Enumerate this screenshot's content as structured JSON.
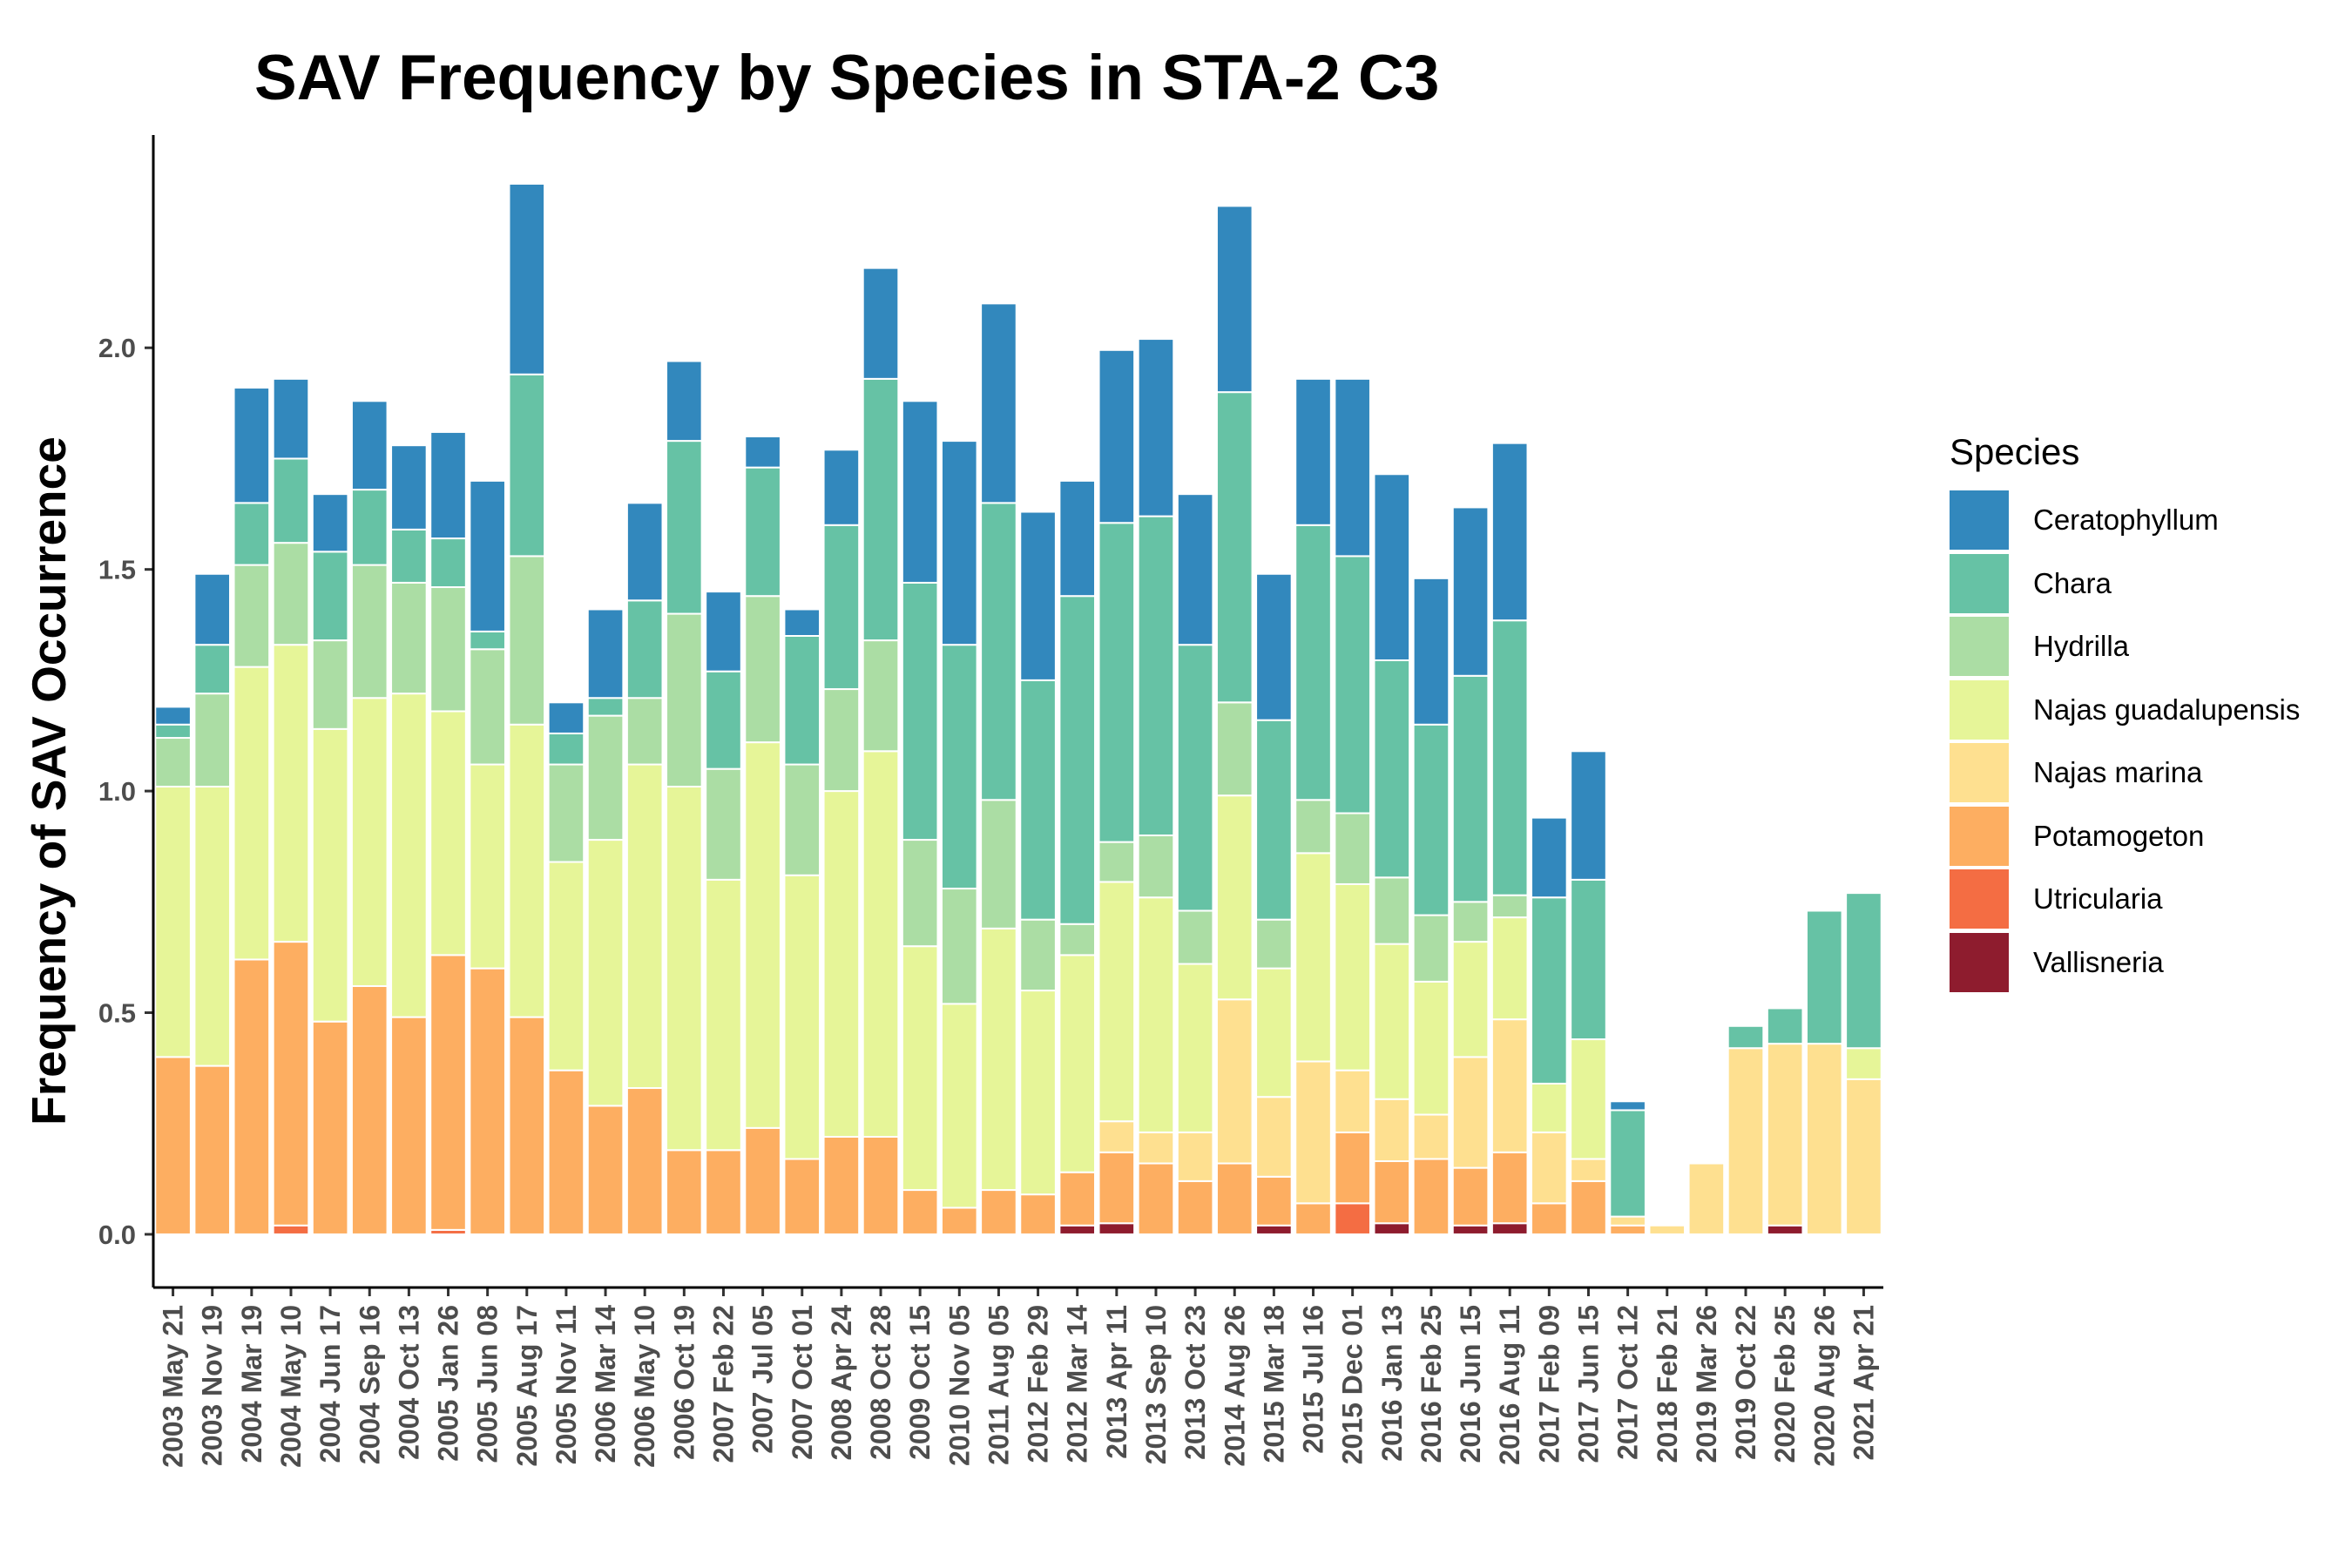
{
  "chart_data": {
    "type": "bar",
    "stacked": true,
    "title": "SAV Frequency by Species in STA-2 C3",
    "xlabel": "",
    "ylabel": "Frequency of SAV Occurrence",
    "ylim": [
      -0.12,
      2.48
    ],
    "yticks": [
      0.0,
      0.5,
      1.0,
      1.5,
      2.0
    ],
    "ytick_labels": [
      "0.0",
      "0.5",
      "1.0",
      "1.5",
      "2.0"
    ],
    "grid": false,
    "legend_title": "Species",
    "legend_position": "right",
    "categories": [
      "2003 May 21",
      "2003 Nov 19",
      "2004 Mar 19",
      "2004 May 10",
      "2004 Jun 17",
      "2004 Sep 16",
      "2004 Oct 13",
      "2005 Jan 26",
      "2005 Jun 08",
      "2005 Aug 17",
      "2005 Nov 11",
      "2006 Mar 14",
      "2006 May 10",
      "2006 Oct 19",
      "2007 Feb 22",
      "2007 Jul 05",
      "2007 Oct 01",
      "2008 Apr 24",
      "2008 Oct 28",
      "2009 Oct 15",
      "2010 Nov 05",
      "2011 Aug 05",
      "2012 Feb 29",
      "2012 Mar 14",
      "2013 Apr 11",
      "2013 Sep 10",
      "2013 Oct 23",
      "2014 Aug 26",
      "2015 Mar 18",
      "2015 Jul 16",
      "2015 Dec 01",
      "2016 Jan 13",
      "2016 Feb 25",
      "2016 Jun 15",
      "2016 Aug 11",
      "2017 Feb 09",
      "2017 Jun 15",
      "2017 Oct 12",
      "2018 Feb 21",
      "2019 Mar 26",
      "2019 Oct 22",
      "2020 Feb 25",
      "2020 Aug 26",
      "2021 Apr 21"
    ],
    "series": [
      {
        "name": "Vallisneria",
        "color": "#8E1C2E",
        "values": [
          0,
          0,
          0,
          0,
          0,
          0,
          0,
          0,
          0,
          0,
          0,
          0,
          0,
          0,
          0,
          0,
          0,
          0,
          0,
          0,
          0,
          0,
          0,
          0.02,
          0.025,
          0,
          0,
          0,
          0.02,
          0,
          0,
          0.025,
          0,
          0.02,
          0.025,
          0,
          0,
          0,
          0,
          0,
          0,
          0.02,
          0,
          0
        ]
      },
      {
        "name": "Utricularia",
        "color": "#F46D43",
        "values": [
          0,
          0,
          0,
          0.02,
          0,
          0,
          0,
          0.01,
          0,
          0,
          0,
          0,
          0,
          0,
          0,
          0,
          0,
          0,
          0,
          0,
          0,
          0,
          0,
          0,
          0,
          0,
          0,
          0,
          0,
          0,
          0.07,
          0,
          0,
          0,
          0,
          0,
          0,
          0,
          0,
          0,
          0,
          0,
          0,
          0
        ]
      },
      {
        "name": "Potamogeton",
        "color": "#FDAE61",
        "values": [
          0.4,
          0.38,
          0.62,
          0.64,
          0.48,
          0.56,
          0.49,
          0.62,
          0.6,
          0.49,
          0.37,
          0.29,
          0.33,
          0.19,
          0.19,
          0.24,
          0.17,
          0.22,
          0.22,
          0.1,
          0.06,
          0.1,
          0.09,
          0.12,
          0.16,
          0.16,
          0.12,
          0.16,
          0.11,
          0.07,
          0.16,
          0.14,
          0.17,
          0.13,
          0.16,
          0.07,
          0.12,
          0.02,
          0,
          0,
          0,
          0,
          0,
          0
        ]
      },
      {
        "name": "Najas marina",
        "color": "#FEE090",
        "values": [
          0,
          0,
          0,
          0,
          0,
          0,
          0,
          0,
          0,
          0,
          0,
          0,
          0,
          0,
          0,
          0,
          0,
          0,
          0,
          0,
          0,
          0,
          0,
          0,
          0.07,
          0.07,
          0.11,
          0.37,
          0.18,
          0.32,
          0.14,
          0.14,
          0.1,
          0.25,
          0.3,
          0.16,
          0.05,
          0.02,
          0.02,
          0.16,
          0.42,
          0.41,
          0.43,
          0.35
        ]
      },
      {
        "name": "Najas guadalupensis",
        "color": "#E6F598",
        "values": [
          0.61,
          0.63,
          0.66,
          0.67,
          0.66,
          0.65,
          0.73,
          0.55,
          0.46,
          0.66,
          0.47,
          0.6,
          0.73,
          0.82,
          0.61,
          0.87,
          0.64,
          0.78,
          0.87,
          0.55,
          0.46,
          0.59,
          0.46,
          0.49,
          0.54,
          0.53,
          0.38,
          0.46,
          0.29,
          0.47,
          0.42,
          0.35,
          0.3,
          0.26,
          0.23,
          0.11,
          0.27,
          0,
          0,
          0,
          0,
          0,
          0,
          0.07
        ]
      },
      {
        "name": "Hydrilla",
        "color": "#ABDDA4",
        "values": [
          0.11,
          0.21,
          0.23,
          0.23,
          0.2,
          0.3,
          0.25,
          0.28,
          0.26,
          0.38,
          0.22,
          0.28,
          0.15,
          0.39,
          0.25,
          0.33,
          0.25,
          0.23,
          0.25,
          0.24,
          0.26,
          0.29,
          0.16,
          0.07,
          0.09,
          0.14,
          0.12,
          0.21,
          0.11,
          0.12,
          0.16,
          0.15,
          0.15,
          0.09,
          0.05,
          0,
          0,
          0,
          0,
          0,
          0,
          0,
          0,
          0
        ]
      },
      {
        "name": "Chara",
        "color": "#66C2A5",
        "values": [
          0.03,
          0.11,
          0.14,
          0.19,
          0.2,
          0.17,
          0.12,
          0.11,
          0.04,
          0.41,
          0.07,
          0.04,
          0.22,
          0.39,
          0.22,
          0.29,
          0.29,
          0.37,
          0.59,
          0.58,
          0.55,
          0.67,
          0.54,
          0.74,
          0.72,
          0.72,
          0.6,
          0.7,
          0.45,
          0.62,
          0.58,
          0.49,
          0.43,
          0.51,
          0.62,
          0.42,
          0.36,
          0.24,
          0,
          0,
          0.05,
          0.08,
          0.3,
          0.35
        ]
      },
      {
        "name": "Ceratophyllum",
        "color": "#3288BD",
        "values": [
          0.04,
          0.16,
          0.26,
          0.18,
          0.13,
          0.2,
          0.19,
          0.24,
          0.34,
          0.43,
          0.07,
          0.2,
          0.22,
          0.18,
          0.18,
          0.07,
          0.06,
          0.17,
          0.25,
          0.41,
          0.46,
          0.45,
          0.38,
          0.26,
          0.39,
          0.4,
          0.34,
          0.42,
          0.33,
          0.33,
          0.4,
          0.42,
          0.33,
          0.38,
          0.4,
          0.18,
          0.29,
          0.02,
          0,
          0,
          0,
          0,
          0,
          0
        ]
      }
    ]
  }
}
